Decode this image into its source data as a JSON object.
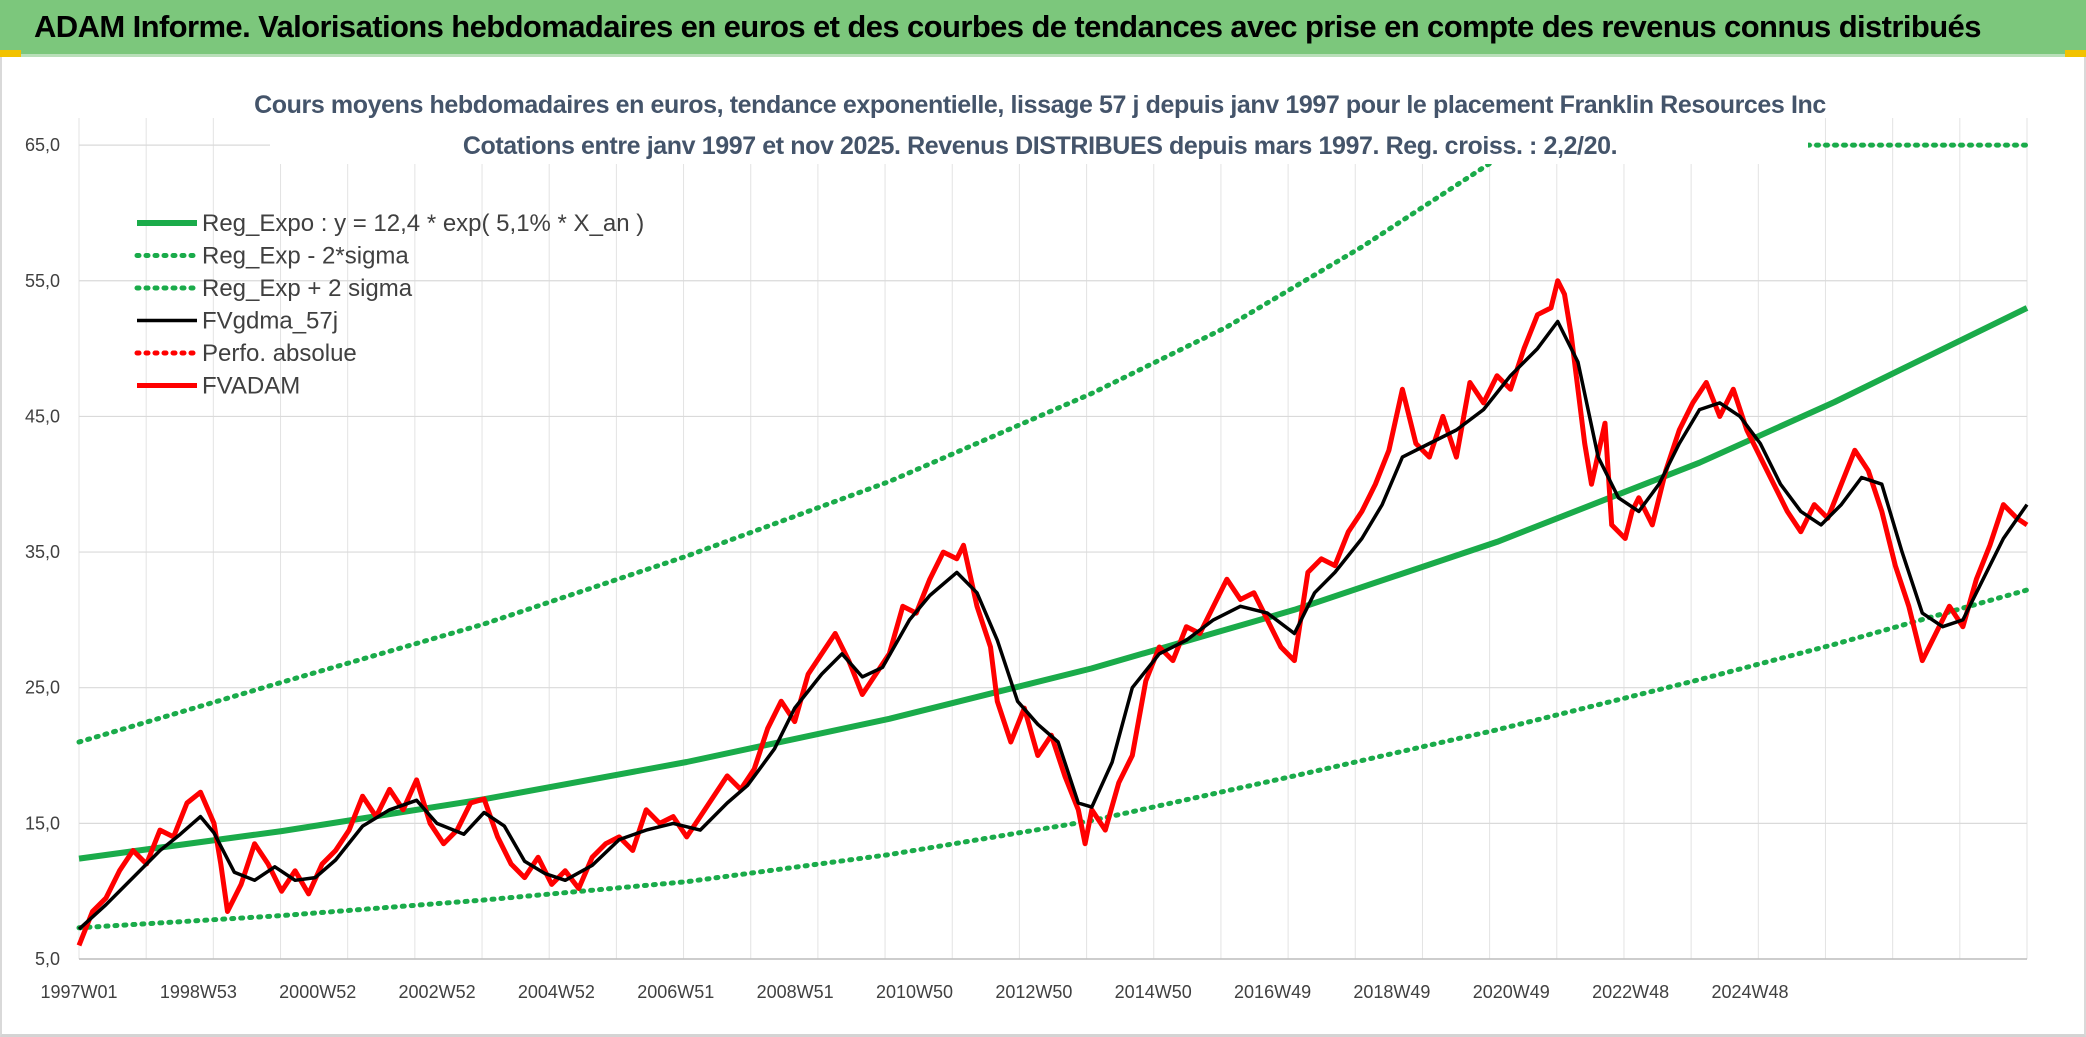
{
  "banner": {
    "title": "ADAM Informe. Valorisations hebdomadaires en euros et des courbes de tendances avec prise en compte des revenus connus distribués",
    "background": "#7cc77c"
  },
  "chart_data": {
    "type": "line",
    "title": "Cours moyens hebdomadaires en euros, tendance exponentielle, lissage 57 j depuis janv 1997 pour le placement Franklin Resources Inc",
    "subtitle": "Cotations entre janv 1997 et nov 2025. Revenus DISTRIBUES depuis mars 1997. Reg. croiss. : 2,2/20.",
    "xlabel": "",
    "ylabel": "",
    "x_tick_labels": [
      "1997W01",
      "1998W53",
      "2000W52",
      "2002W52",
      "2004W52",
      "2006W51",
      "2008W51",
      "2010W50",
      "2012W50",
      "2014W50",
      "2016W49",
      "2018W49",
      "2020W49",
      "2022W48",
      "2024W48"
    ],
    "x_range": [
      1997.0,
      2025.85
    ],
    "y_tick_labels": [
      "5,0",
      "15,0",
      "25,0",
      "35,0",
      "45,0",
      "55,0",
      "65,0"
    ],
    "ylim": [
      5,
      67
    ],
    "grid": true,
    "legend_position": "top-left",
    "series": [
      {
        "name": "Reg_Expo : y = 12,4 * exp( 5,1% *  X_an )",
        "color": "#1aab4a",
        "style": "solid",
        "points": [
          [
            1997.0,
            12.4
          ],
          [
            2000.0,
            14.43
          ],
          [
            2003.0,
            16.78
          ],
          [
            2006.0,
            19.52
          ],
          [
            2009.0,
            22.71
          ],
          [
            2012.0,
            26.42
          ],
          [
            2015.0,
            30.74
          ],
          [
            2018.0,
            35.75
          ],
          [
            2021.0,
            41.59
          ],
          [
            2023.0,
            46.06
          ],
          [
            2025.85,
            53.0
          ]
        ]
      },
      {
        "name": "Reg_Exp - 2*sigma",
        "color": "#1aab4a",
        "style": "dotted",
        "points": [
          [
            1997.0,
            7.3
          ],
          [
            2000.0,
            8.2
          ],
          [
            2003.0,
            9.35
          ],
          [
            2006.0,
            10.7
          ],
          [
            2009.0,
            12.7
          ],
          [
            2012.0,
            15.2
          ],
          [
            2015.0,
            18.5
          ],
          [
            2018.0,
            21.9
          ],
          [
            2021.0,
            25.6
          ],
          [
            2023.0,
            28.2
          ],
          [
            2025.85,
            32.2
          ]
        ]
      },
      {
        "name": "Reg_Exp + 2 sigma",
        "color": "#1aab4a",
        "style": "dotted",
        "points": [
          [
            1997.0,
            21.0
          ],
          [
            2000.0,
            25.4
          ],
          [
            2003.0,
            29.7
          ],
          [
            2006.0,
            34.7
          ],
          [
            2009.0,
            40.2
          ],
          [
            2012.0,
            46.7
          ],
          [
            2014.0,
            51.6
          ],
          [
            2016.0,
            57.5
          ],
          [
            2018.0,
            64.0
          ],
          [
            2018.2,
            66.2
          ]
        ],
        "top_segment_points": [
          [
            2021.8,
            65.0
          ],
          [
            2025.85,
            65.0
          ]
        ]
      },
      {
        "name": "FVgdma_57j",
        "color": "#000000",
        "style": "solid",
        "points": [
          [
            1997.0,
            7.2
          ],
          [
            1997.4,
            9.0
          ],
          [
            1997.8,
            11.0
          ],
          [
            1998.2,
            13.0
          ],
          [
            1998.5,
            14.2
          ],
          [
            1998.8,
            15.5
          ],
          [
            1999.0,
            14.3
          ],
          [
            1999.3,
            11.4
          ],
          [
            1999.6,
            10.8
          ],
          [
            1999.9,
            11.8
          ],
          [
            2000.2,
            10.8
          ],
          [
            2000.5,
            11.0
          ],
          [
            2000.8,
            12.3
          ],
          [
            2001.2,
            14.8
          ],
          [
            2001.6,
            16.0
          ],
          [
            2002.0,
            16.7
          ],
          [
            2002.3,
            15.0
          ],
          [
            2002.7,
            14.2
          ],
          [
            2003.0,
            15.8
          ],
          [
            2003.3,
            14.8
          ],
          [
            2003.6,
            12.2
          ],
          [
            2003.9,
            11.3
          ],
          [
            2004.2,
            10.8
          ],
          [
            2004.6,
            11.9
          ],
          [
            2005.0,
            13.8
          ],
          [
            2005.4,
            14.5
          ],
          [
            2005.8,
            15.0
          ],
          [
            2006.2,
            14.5
          ],
          [
            2006.6,
            16.5
          ],
          [
            2006.9,
            17.8
          ],
          [
            2007.3,
            20.5
          ],
          [
            2007.6,
            23.5
          ],
          [
            2008.0,
            26.0
          ],
          [
            2008.3,
            27.5
          ],
          [
            2008.6,
            25.8
          ],
          [
            2008.9,
            26.5
          ],
          [
            2009.3,
            30.0
          ],
          [
            2009.6,
            31.8
          ],
          [
            2010.0,
            33.5
          ],
          [
            2010.3,
            32.0
          ],
          [
            2010.6,
            28.5
          ],
          [
            2010.9,
            24.0
          ],
          [
            2011.2,
            22.3
          ],
          [
            2011.5,
            21.0
          ],
          [
            2011.8,
            16.5
          ],
          [
            2012.0,
            16.2
          ],
          [
            2012.3,
            19.5
          ],
          [
            2012.6,
            25.0
          ],
          [
            2013.0,
            27.5
          ],
          [
            2013.4,
            28.5
          ],
          [
            2013.8,
            30.0
          ],
          [
            2014.2,
            31.0
          ],
          [
            2014.6,
            30.5
          ],
          [
            2015.0,
            29.0
          ],
          [
            2015.3,
            32.0
          ],
          [
            2015.6,
            33.5
          ],
          [
            2016.0,
            36.0
          ],
          [
            2016.3,
            38.5
          ],
          [
            2016.6,
            42.0
          ],
          [
            2017.0,
            43.0
          ],
          [
            2017.4,
            44.0
          ],
          [
            2017.8,
            45.5
          ],
          [
            2018.2,
            48.0
          ],
          [
            2018.6,
            50.0
          ],
          [
            2018.9,
            52.0
          ],
          [
            2019.2,
            49.0
          ],
          [
            2019.5,
            42.0
          ],
          [
            2019.8,
            39.0
          ],
          [
            2020.1,
            38.0
          ],
          [
            2020.4,
            40.0
          ],
          [
            2020.7,
            43.0
          ],
          [
            2021.0,
            45.5
          ],
          [
            2021.3,
            46.0
          ],
          [
            2021.6,
            45.0
          ],
          [
            2021.9,
            43.0
          ],
          [
            2022.2,
            40.0
          ],
          [
            2022.5,
            38.0
          ],
          [
            2022.8,
            37.0
          ],
          [
            2023.1,
            38.5
          ],
          [
            2023.4,
            40.5
          ],
          [
            2023.7,
            40.0
          ],
          [
            2024.0,
            35.0
          ],
          [
            2024.3,
            30.5
          ],
          [
            2024.6,
            29.5
          ],
          [
            2024.9,
            30.0
          ],
          [
            2025.2,
            33.0
          ],
          [
            2025.5,
            36.0
          ],
          [
            2025.85,
            38.5
          ]
        ]
      },
      {
        "name": "Perfo. absolue",
        "color": "#ff0000",
        "style": "dotted",
        "points": []
      },
      {
        "name": "FVADAM",
        "color": "#ff0000",
        "style": "solid",
        "points": [
          [
            1997.0,
            6.0
          ],
          [
            1997.2,
            8.5
          ],
          [
            1997.4,
            9.5
          ],
          [
            1997.6,
            11.5
          ],
          [
            1997.8,
            13.0
          ],
          [
            1998.0,
            12.0
          ],
          [
            1998.2,
            14.5
          ],
          [
            1998.4,
            14.0
          ],
          [
            1998.6,
            16.5
          ],
          [
            1998.8,
            17.3
          ],
          [
            1999.0,
            15.0
          ],
          [
            1999.1,
            12.0
          ],
          [
            1999.2,
            8.5
          ],
          [
            1999.4,
            10.5
          ],
          [
            1999.6,
            13.5
          ],
          [
            1999.8,
            12.0
          ],
          [
            2000.0,
            10.0
          ],
          [
            2000.2,
            11.5
          ],
          [
            2000.4,
            9.8
          ],
          [
            2000.6,
            12.0
          ],
          [
            2000.8,
            13.0
          ],
          [
            2001.0,
            14.5
          ],
          [
            2001.2,
            17.0
          ],
          [
            2001.4,
            15.5
          ],
          [
            2001.6,
            17.5
          ],
          [
            2001.8,
            16.0
          ],
          [
            2002.0,
            18.2
          ],
          [
            2002.2,
            15.0
          ],
          [
            2002.4,
            13.5
          ],
          [
            2002.6,
            14.5
          ],
          [
            2002.8,
            16.5
          ],
          [
            2003.0,
            16.8
          ],
          [
            2003.2,
            14.0
          ],
          [
            2003.4,
            12.0
          ],
          [
            2003.6,
            11.0
          ],
          [
            2003.8,
            12.5
          ],
          [
            2004.0,
            10.5
          ],
          [
            2004.2,
            11.5
          ],
          [
            2004.4,
            10.2
          ],
          [
            2004.6,
            12.5
          ],
          [
            2004.8,
            13.5
          ],
          [
            2005.0,
            14.0
          ],
          [
            2005.2,
            13.0
          ],
          [
            2005.4,
            16.0
          ],
          [
            2005.6,
            15.0
          ],
          [
            2005.8,
            15.5
          ],
          [
            2006.0,
            14.0
          ],
          [
            2006.2,
            15.5
          ],
          [
            2006.4,
            17.0
          ],
          [
            2006.6,
            18.5
          ],
          [
            2006.8,
            17.5
          ],
          [
            2007.0,
            19.0
          ],
          [
            2007.2,
            22.0
          ],
          [
            2007.4,
            24.0
          ],
          [
            2007.6,
            22.5
          ],
          [
            2007.8,
            26.0
          ],
          [
            2008.0,
            27.5
          ],
          [
            2008.2,
            29.0
          ],
          [
            2008.4,
            27.0
          ],
          [
            2008.6,
            24.5
          ],
          [
            2008.8,
            26.0
          ],
          [
            2009.0,
            27.5
          ],
          [
            2009.2,
            31.0
          ],
          [
            2009.4,
            30.5
          ],
          [
            2009.6,
            33.0
          ],
          [
            2009.8,
            35.0
          ],
          [
            2010.0,
            34.5
          ],
          [
            2010.1,
            35.5
          ],
          [
            2010.3,
            31.0
          ],
          [
            2010.5,
            28.0
          ],
          [
            2010.6,
            24.0
          ],
          [
            2010.8,
            21.0
          ],
          [
            2011.0,
            23.5
          ],
          [
            2011.2,
            20.0
          ],
          [
            2011.4,
            21.5
          ],
          [
            2011.6,
            18.5
          ],
          [
            2011.8,
            16.0
          ],
          [
            2011.9,
            13.5
          ],
          [
            2012.0,
            16.0
          ],
          [
            2012.2,
            14.5
          ],
          [
            2012.4,
            18.0
          ],
          [
            2012.6,
            20.0
          ],
          [
            2012.8,
            25.5
          ],
          [
            2013.0,
            28.0
          ],
          [
            2013.2,
            27.0
          ],
          [
            2013.4,
            29.5
          ],
          [
            2013.6,
            29.0
          ],
          [
            2013.8,
            31.0
          ],
          [
            2014.0,
            33.0
          ],
          [
            2014.2,
            31.5
          ],
          [
            2014.4,
            32.0
          ],
          [
            2014.6,
            30.0
          ],
          [
            2014.8,
            28.0
          ],
          [
            2015.0,
            27.0
          ],
          [
            2015.2,
            33.5
          ],
          [
            2015.4,
            34.5
          ],
          [
            2015.6,
            34.0
          ],
          [
            2015.8,
            36.5
          ],
          [
            2016.0,
            38.0
          ],
          [
            2016.2,
            40.0
          ],
          [
            2016.4,
            42.5
          ],
          [
            2016.6,
            47.0
          ],
          [
            2016.8,
            43.0
          ],
          [
            2017.0,
            42.0
          ],
          [
            2017.2,
            45.0
          ],
          [
            2017.4,
            42.0
          ],
          [
            2017.6,
            47.5
          ],
          [
            2017.8,
            46.0
          ],
          [
            2018.0,
            48.0
          ],
          [
            2018.2,
            47.0
          ],
          [
            2018.4,
            50.0
          ],
          [
            2018.6,
            52.5
          ],
          [
            2018.8,
            53.0
          ],
          [
            2018.9,
            55.0
          ],
          [
            2019.0,
            54.0
          ],
          [
            2019.1,
            51.0
          ],
          [
            2019.3,
            43.0
          ],
          [
            2019.4,
            40.0
          ],
          [
            2019.6,
            44.5
          ],
          [
            2019.7,
            37.0
          ],
          [
            2019.9,
            36.0
          ],
          [
            2020.0,
            38.0
          ],
          [
            2020.1,
            39.0
          ],
          [
            2020.3,
            37.0
          ],
          [
            2020.5,
            41.0
          ],
          [
            2020.7,
            44.0
          ],
          [
            2020.9,
            46.0
          ],
          [
            2021.1,
            47.5
          ],
          [
            2021.3,
            45.0
          ],
          [
            2021.5,
            47.0
          ],
          [
            2021.7,
            44.0
          ],
          [
            2021.9,
            42.0
          ],
          [
            2022.1,
            40.0
          ],
          [
            2022.3,
            38.0
          ],
          [
            2022.5,
            36.5
          ],
          [
            2022.7,
            38.5
          ],
          [
            2022.9,
            37.5
          ],
          [
            2023.1,
            40.0
          ],
          [
            2023.3,
            42.5
          ],
          [
            2023.5,
            41.0
          ],
          [
            2023.7,
            38.0
          ],
          [
            2023.9,
            34.0
          ],
          [
            2024.1,
            31.0
          ],
          [
            2024.3,
            27.0
          ],
          [
            2024.5,
            29.0
          ],
          [
            2024.7,
            31.0
          ],
          [
            2024.9,
            29.5
          ],
          [
            2025.1,
            33.0
          ],
          [
            2025.3,
            35.5
          ],
          [
            2025.5,
            38.5
          ],
          [
            2025.7,
            37.5
          ],
          [
            2025.85,
            37.0
          ]
        ]
      }
    ]
  }
}
